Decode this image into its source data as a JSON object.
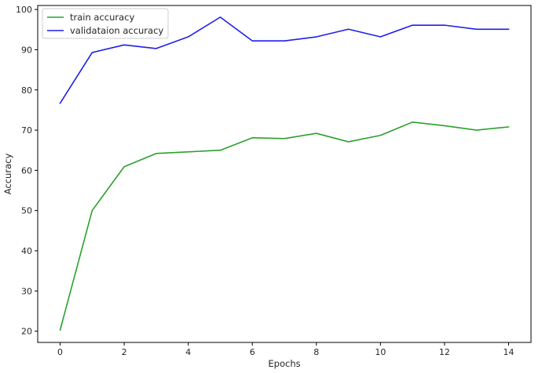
{
  "chart_data": {
    "type": "line",
    "x": [
      0,
      1,
      2,
      3,
      4,
      5,
      6,
      7,
      8,
      9,
      10,
      11,
      12,
      13,
      14
    ],
    "series": [
      {
        "name": "train accuracy",
        "color": "#2ca02c",
        "values": [
          20.3,
          50.0,
          60.9,
          64.2,
          64.6,
          65.0,
          68.1,
          67.9,
          69.2,
          67.1,
          68.7,
          72.0,
          71.1,
          70.0,
          70.8
        ]
      },
      {
        "name": "validataion accuracy",
        "color": "#1f1fe6",
        "values": [
          76.7,
          89.3,
          91.2,
          90.3,
          93.2,
          98.1,
          92.2,
          92.2,
          93.2,
          95.1,
          93.2,
          96.1,
          96.1,
          95.1,
          95.1
        ]
      }
    ],
    "xlabel": "Epochs",
    "ylabel": "Accuracy",
    "xlim": [
      -0.7,
      14.7
    ],
    "ylim": [
      17.2,
      101.0
    ],
    "xticks": [
      0,
      2,
      4,
      6,
      8,
      10,
      12,
      14
    ],
    "yticks": [
      20,
      30,
      40,
      50,
      60,
      70,
      80,
      90,
      100
    ],
    "grid": false,
    "legend_position": "top-left"
  }
}
